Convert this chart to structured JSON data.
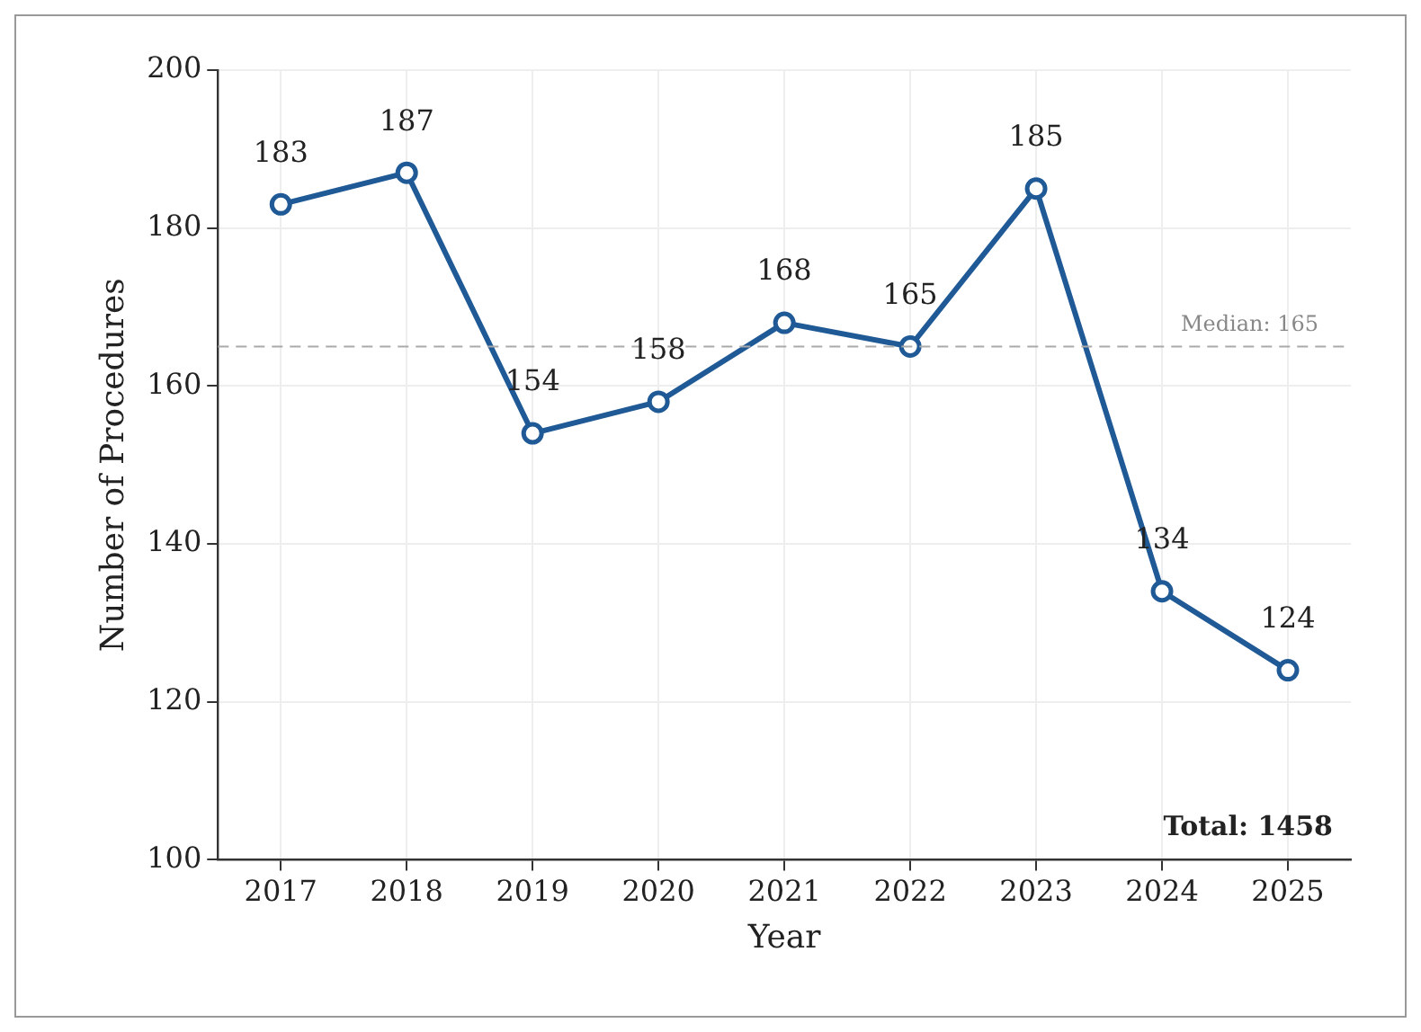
{
  "chart_data": {
    "type": "line",
    "xlabel": "Year",
    "ylabel": "Number of Procedures",
    "categories": [
      "2017",
      "2018",
      "2019",
      "2020",
      "2021",
      "2022",
      "2023",
      "2024",
      "2025"
    ],
    "series": [
      {
        "color": "#1f5a96",
        "values": [
          183,
          187,
          154,
          158,
          168,
          165,
          185,
          134,
          124
        ]
      }
    ],
    "ylim": [
      100,
      200
    ],
    "yticks": [
      100,
      120,
      140,
      160,
      180,
      200
    ],
    "grid": true,
    "legend": false,
    "marker": "circle",
    "line_style": "solid",
    "data_labels": true,
    "ref_lines": [
      {
        "axis": "y",
        "value": 165,
        "label": "Median: 165",
        "color": "#aaaaaa",
        "line_style": "dashed"
      }
    ],
    "annotations": [
      "Total: 1458"
    ]
  }
}
